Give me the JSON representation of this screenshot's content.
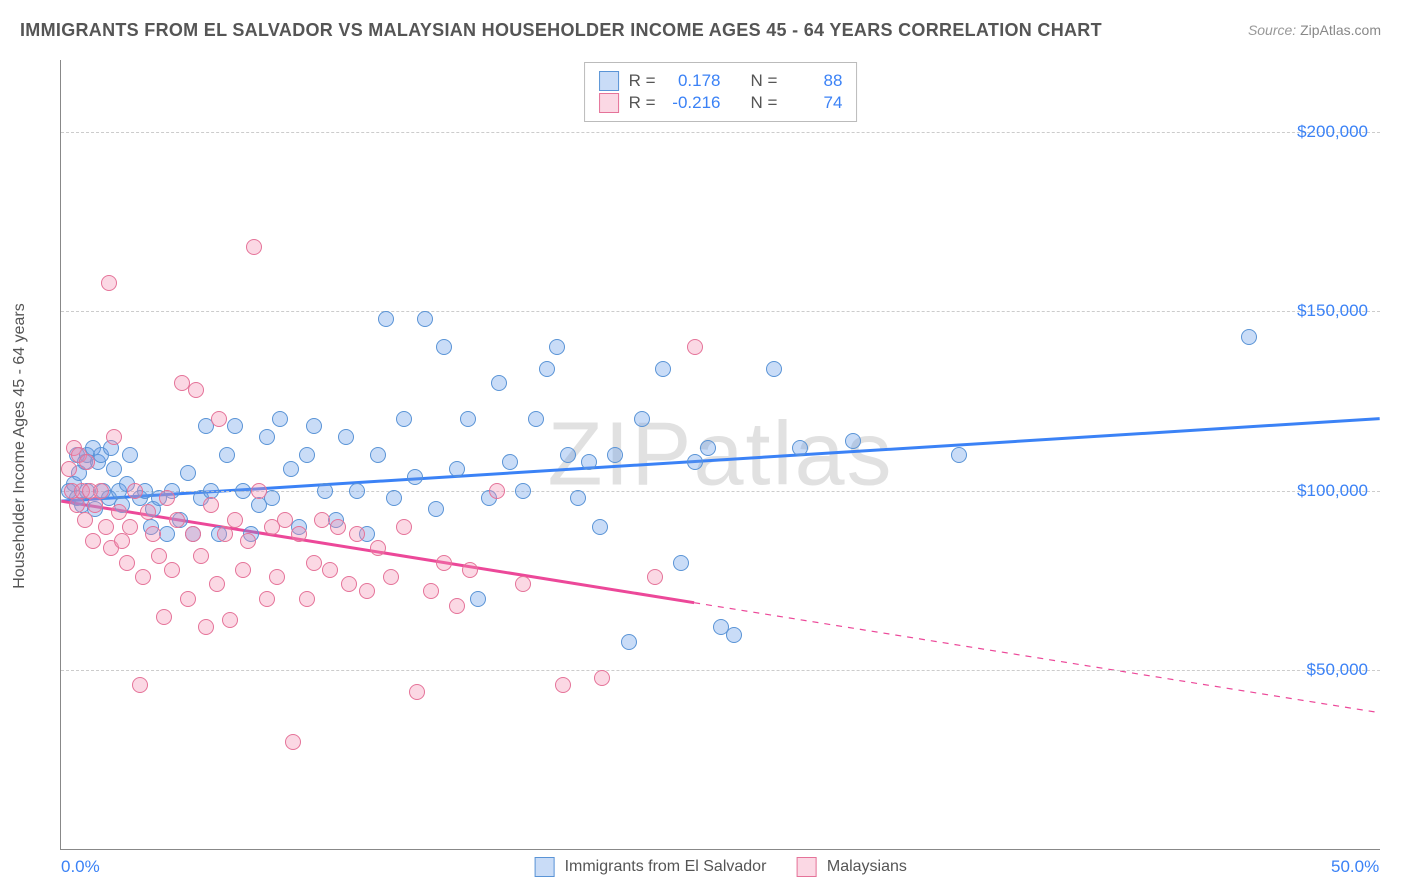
{
  "title": "IMMIGRANTS FROM EL SALVADOR VS MALAYSIAN HOUSEHOLDER INCOME AGES 45 - 64 YEARS CORRELATION CHART",
  "source_label": "Source:",
  "source_value": "ZipAtlas.com",
  "y_axis_title": "Householder Income Ages 45 - 64 years",
  "watermark": "ZIPatlas",
  "chart": {
    "type": "scatter",
    "xlim": [
      0,
      50
    ],
    "ylim": [
      0,
      220000
    ],
    "xticks": [
      {
        "v": 0,
        "label": "0.0%"
      },
      {
        "v": 50,
        "label": "50.0%"
      }
    ],
    "yticks": [
      {
        "v": 50000,
        "label": "$50,000"
      },
      {
        "v": 100000,
        "label": "$100,000"
      },
      {
        "v": 150000,
        "label": "$150,000"
      },
      {
        "v": 200000,
        "label": "$200,000"
      }
    ],
    "grid_color": "#cccccc",
    "axis_color": "#888888",
    "background_color": "#ffffff",
    "marker_radius": 8,
    "marker_stroke_width": 1.5,
    "trendline_width": 3,
    "series": [
      {
        "name": "Immigrants from El Salvador",
        "fill": "rgba(99,155,233,0.35)",
        "stroke": "#5a94d6",
        "solid": "#3b82f6",
        "stats": {
          "R": "0.178",
          "N": "88"
        },
        "trend": {
          "x1": 0,
          "y1": 97000,
          "x2": 50,
          "y2": 120000,
          "solid_until_x": 50
        },
        "points": [
          [
            0.3,
            100000
          ],
          [
            0.5,
            102000
          ],
          [
            0.6,
            98000
          ],
          [
            0.6,
            110000
          ],
          [
            0.7,
            105000
          ],
          [
            0.8,
            96000
          ],
          [
            0.9,
            108000
          ],
          [
            1.0,
            100000
          ],
          [
            1.0,
            110000
          ],
          [
            1.2,
            112000
          ],
          [
            1.3,
            95000
          ],
          [
            1.4,
            108000
          ],
          [
            1.5,
            110000
          ],
          [
            1.6,
            100000
          ],
          [
            1.8,
            98000
          ],
          [
            1.9,
            112000
          ],
          [
            2.0,
            106000
          ],
          [
            2.2,
            100000
          ],
          [
            2.3,
            96000
          ],
          [
            2.5,
            102000
          ],
          [
            2.6,
            110000
          ],
          [
            3.0,
            98000
          ],
          [
            3.2,
            100000
          ],
          [
            3.4,
            90000
          ],
          [
            3.5,
            95000
          ],
          [
            3.7,
            98000
          ],
          [
            4.0,
            88000
          ],
          [
            4.2,
            100000
          ],
          [
            4.5,
            92000
          ],
          [
            4.8,
            105000
          ],
          [
            5.0,
            88000
          ],
          [
            5.3,
            98000
          ],
          [
            5.5,
            118000
          ],
          [
            5.7,
            100000
          ],
          [
            6.0,
            88000
          ],
          [
            6.3,
            110000
          ],
          [
            6.6,
            118000
          ],
          [
            6.9,
            100000
          ],
          [
            7.2,
            88000
          ],
          [
            7.5,
            96000
          ],
          [
            7.8,
            115000
          ],
          [
            8.0,
            98000
          ],
          [
            8.3,
            120000
          ],
          [
            8.7,
            106000
          ],
          [
            9.0,
            90000
          ],
          [
            9.3,
            110000
          ],
          [
            9.6,
            118000
          ],
          [
            10.0,
            100000
          ],
          [
            10.4,
            92000
          ],
          [
            10.8,
            115000
          ],
          [
            11.2,
            100000
          ],
          [
            11.6,
            88000
          ],
          [
            12.0,
            110000
          ],
          [
            12.3,
            148000
          ],
          [
            12.6,
            98000
          ],
          [
            13.0,
            120000
          ],
          [
            13.4,
            104000
          ],
          [
            13.8,
            148000
          ],
          [
            14.2,
            95000
          ],
          [
            14.5,
            140000
          ],
          [
            15.0,
            106000
          ],
          [
            15.4,
            120000
          ],
          [
            15.8,
            70000
          ],
          [
            16.2,
            98000
          ],
          [
            16.6,
            130000
          ],
          [
            17.0,
            108000
          ],
          [
            17.5,
            100000
          ],
          [
            18.0,
            120000
          ],
          [
            18.4,
            134000
          ],
          [
            18.8,
            140000
          ],
          [
            19.2,
            110000
          ],
          [
            19.6,
            98000
          ],
          [
            20.0,
            108000
          ],
          [
            20.4,
            90000
          ],
          [
            21.0,
            110000
          ],
          [
            21.5,
            58000
          ],
          [
            22.0,
            120000
          ],
          [
            22.8,
            134000
          ],
          [
            23.5,
            80000
          ],
          [
            24.0,
            108000
          ],
          [
            24.5,
            112000
          ],
          [
            25.0,
            62000
          ],
          [
            25.5,
            60000
          ],
          [
            27.0,
            134000
          ],
          [
            28.0,
            112000
          ],
          [
            30.0,
            114000
          ],
          [
            34.0,
            110000
          ],
          [
            45.0,
            143000
          ]
        ]
      },
      {
        "name": "Malaysians",
        "fill": "rgba(244,143,177,0.35)",
        "stroke": "#e57399",
        "solid": "#ec4899",
        "stats": {
          "R": "-0.216",
          "N": "74"
        },
        "trend": {
          "x1": 0,
          "y1": 97000,
          "x2": 50,
          "y2": 38000,
          "solid_until_x": 24
        },
        "points": [
          [
            0.3,
            106000
          ],
          [
            0.4,
            100000
          ],
          [
            0.5,
            112000
          ],
          [
            0.6,
            96000
          ],
          [
            0.7,
            110000
          ],
          [
            0.8,
            100000
          ],
          [
            0.9,
            92000
          ],
          [
            1.0,
            108000
          ],
          [
            1.1,
            100000
          ],
          [
            1.2,
            86000
          ],
          [
            1.3,
            96000
          ],
          [
            1.5,
            100000
          ],
          [
            1.7,
            90000
          ],
          [
            1.8,
            158000
          ],
          [
            1.9,
            84000
          ],
          [
            2.0,
            115000
          ],
          [
            2.2,
            94000
          ],
          [
            2.3,
            86000
          ],
          [
            2.5,
            80000
          ],
          [
            2.6,
            90000
          ],
          [
            2.8,
            100000
          ],
          [
            3.0,
            46000
          ],
          [
            3.1,
            76000
          ],
          [
            3.3,
            94000
          ],
          [
            3.5,
            88000
          ],
          [
            3.7,
            82000
          ],
          [
            3.9,
            65000
          ],
          [
            4.0,
            98000
          ],
          [
            4.2,
            78000
          ],
          [
            4.4,
            92000
          ],
          [
            4.6,
            130000
          ],
          [
            4.8,
            70000
          ],
          [
            5.0,
            88000
          ],
          [
            5.1,
            128000
          ],
          [
            5.3,
            82000
          ],
          [
            5.5,
            62000
          ],
          [
            5.7,
            96000
          ],
          [
            5.9,
            74000
          ],
          [
            6.0,
            120000
          ],
          [
            6.2,
            88000
          ],
          [
            6.4,
            64000
          ],
          [
            6.6,
            92000
          ],
          [
            6.9,
            78000
          ],
          [
            7.1,
            86000
          ],
          [
            7.3,
            168000
          ],
          [
            7.5,
            100000
          ],
          [
            7.8,
            70000
          ],
          [
            8.0,
            90000
          ],
          [
            8.2,
            76000
          ],
          [
            8.5,
            92000
          ],
          [
            8.8,
            30000
          ],
          [
            9.0,
            88000
          ],
          [
            9.3,
            70000
          ],
          [
            9.6,
            80000
          ],
          [
            9.9,
            92000
          ],
          [
            10.2,
            78000
          ],
          [
            10.5,
            90000
          ],
          [
            10.9,
            74000
          ],
          [
            11.2,
            88000
          ],
          [
            11.6,
            72000
          ],
          [
            12.0,
            84000
          ],
          [
            12.5,
            76000
          ],
          [
            13.0,
            90000
          ],
          [
            13.5,
            44000
          ],
          [
            14.0,
            72000
          ],
          [
            14.5,
            80000
          ],
          [
            15.0,
            68000
          ],
          [
            15.5,
            78000
          ],
          [
            16.5,
            100000
          ],
          [
            17.5,
            74000
          ],
          [
            19.0,
            46000
          ],
          [
            20.5,
            48000
          ],
          [
            22.5,
            76000
          ],
          [
            24.0,
            140000
          ]
        ]
      }
    ]
  },
  "legend": {
    "r_label": "R =",
    "n_label": "N ="
  }
}
